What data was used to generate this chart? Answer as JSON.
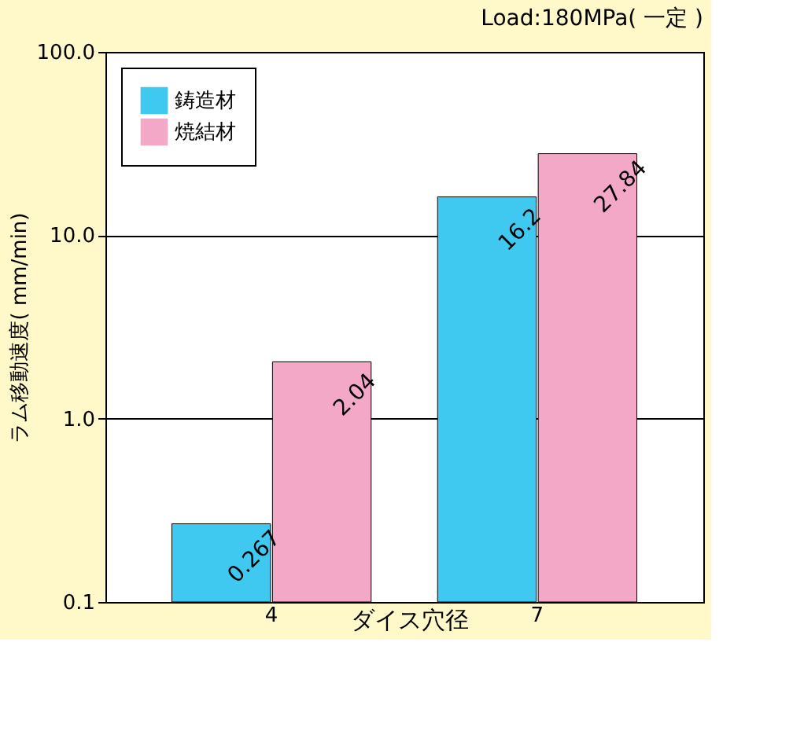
{
  "chart_data": {
    "type": "bar",
    "title": "Load:180MPa( 一定 )",
    "xlabel": "ダイス穴径",
    "ylabel": "ラム移動速度( mm/min)",
    "categories": [
      "4",
      "7"
    ],
    "series": [
      {
        "name": "鋳造材",
        "color": "#3fc8f0",
        "values": [
          0.267,
          16.2
        ]
      },
      {
        "name": "焼結材",
        "color": "#f4a8c8",
        "values": [
          2.04,
          27.84
        ]
      }
    ],
    "log": "y",
    "ylim": [
      0.1,
      100
    ],
    "yticks": [
      0.1,
      {
        "value": 1,
        "label": "1.0"
      },
      {
        "value": 10,
        "label": "10.0"
      },
      {
        "value": 100,
        "label": "100.0"
      }
    ],
    "grid": "y",
    "legend": "top left",
    "data_labels": true
  }
}
